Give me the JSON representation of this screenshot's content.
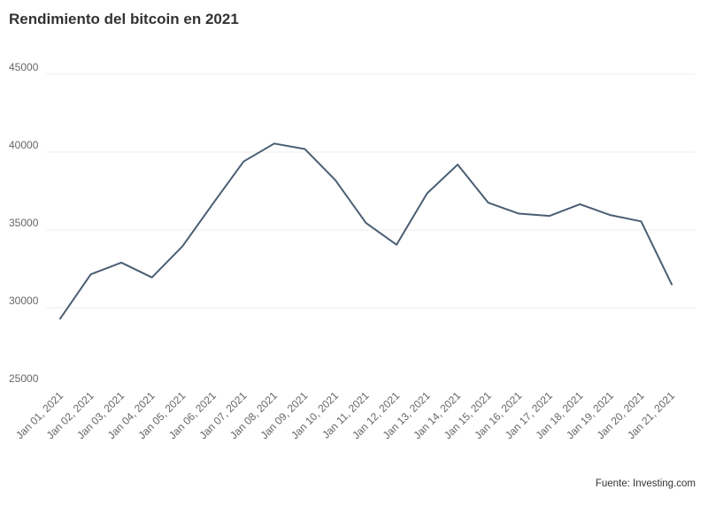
{
  "chart_title": "Rendimiento del bitcoin en 2021",
  "source_note": "Fuente: Investing.com",
  "colors": {
    "line": "#4a5d73",
    "grid": "#eeeeee",
    "text": "#333333",
    "tick": "#666666"
  },
  "chart_data": {
    "type": "line",
    "title": "Rendimiento del bitcoin en 2021",
    "xlabel": "",
    "ylabel": "",
    "ylim": [
      25000,
      45000
    ],
    "yticks": [
      25000,
      30000,
      35000,
      40000,
      45000
    ],
    "grid": true,
    "x": [
      "Jan 01, 2021",
      "Jan 02, 2021",
      "Jan 03, 2021",
      "Jan 04, 2021",
      "Jan 05, 2021",
      "Jan 06, 2021",
      "Jan 07, 2021",
      "Jan 08, 2021",
      "Jan 09, 2021",
      "Jan 10, 2021",
      "Jan 11, 2021",
      "Jan 12, 2021",
      "Jan 13, 2021",
      "Jan 14, 2021",
      "Jan 15, 2021",
      "Jan 16, 2021",
      "Jan 17, 2021",
      "Jan 18, 2021",
      "Jan 19, 2021",
      "Jan 20, 2021",
      "Jan 21, 2021"
    ],
    "series": [
      {
        "values": [
          29300,
          32150,
          32900,
          31950,
          33950,
          36700,
          39400,
          40550,
          40200,
          38200,
          35450,
          34050,
          37350,
          39200,
          36750,
          36050,
          35900,
          36650,
          35950,
          35550,
          31500
        ]
      }
    ]
  }
}
